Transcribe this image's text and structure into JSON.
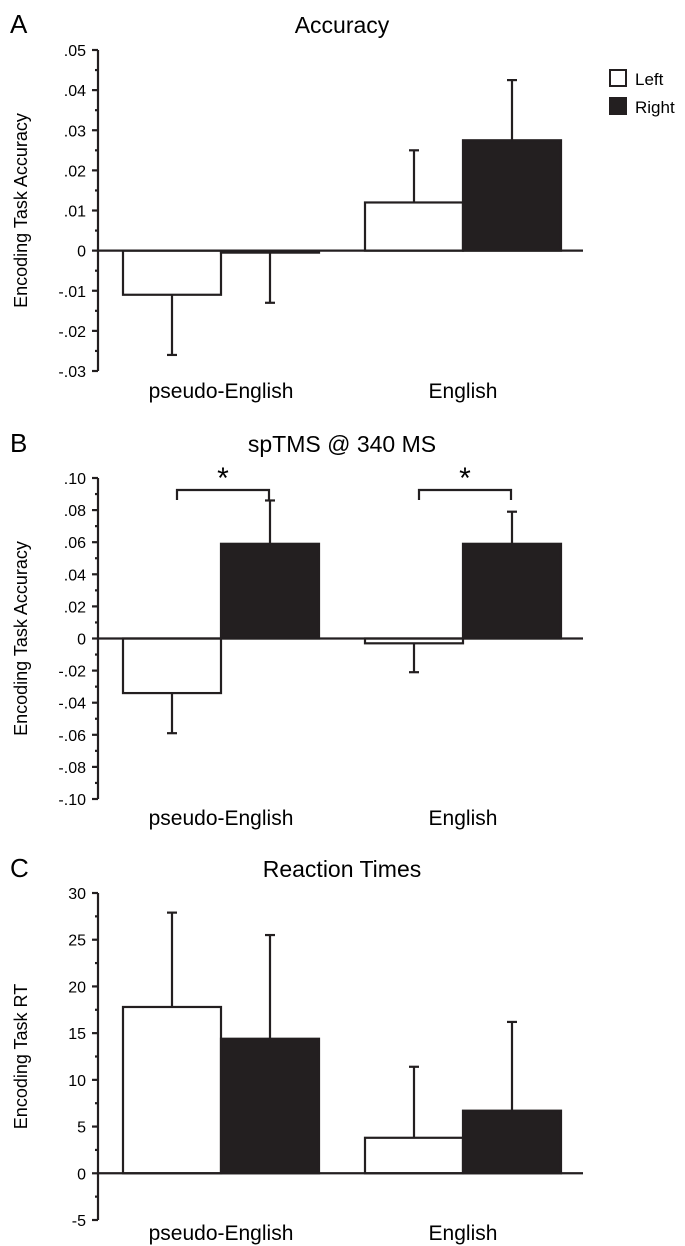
{
  "legend": [
    {
      "label": "Left",
      "color": "#ffffff"
    },
    {
      "label": "Right",
      "color": "#231f20"
    }
  ],
  "chart_data": [
    {
      "panel": "A",
      "type": "bar",
      "title": "Accuracy",
      "ylabel": "Encoding Task Accuracy",
      "categories": [
        "pseudo-English",
        "English"
      ],
      "ylim": [
        -0.03,
        0.05
      ],
      "yticks": [
        0.05,
        0.04,
        0.03,
        0.02,
        0.01,
        0,
        -0.01,
        -0.02,
        -0.03
      ],
      "ytick_labels": [
        ".05",
        ".04",
        ".03",
        ".02",
        ".01",
        "0",
        "-.01",
        "-.02",
        "-.03"
      ],
      "series": [
        {
          "name": "Left",
          "values": [
            -0.011,
            0.012
          ],
          "errors": [
            0.015,
            0.013
          ]
        },
        {
          "name": "Right",
          "values": [
            -0.0005,
            0.0275
          ],
          "errors": [
            0.0125,
            0.015
          ]
        }
      ],
      "significance": []
    },
    {
      "panel": "B",
      "type": "bar",
      "title": "spTMS @ 340 MS",
      "ylabel": "Encoding Task Accuracy",
      "categories": [
        "pseudo-English",
        "English"
      ],
      "ylim": [
        -0.1,
        0.1
      ],
      "yticks": [
        0.1,
        0.08,
        0.06,
        0.04,
        0.02,
        0,
        -0.02,
        -0.04,
        -0.06,
        -0.08,
        -0.1
      ],
      "ytick_labels": [
        ".10",
        ".08",
        ".06",
        ".04",
        ".02",
        "0",
        "-.02",
        "-.04",
        "-.06",
        "-.08",
        "-.10"
      ],
      "series": [
        {
          "name": "Left",
          "values": [
            -0.034,
            -0.003
          ],
          "errors": [
            0.025,
            0.018
          ]
        },
        {
          "name": "Right",
          "values": [
            0.059,
            0.059
          ],
          "errors": [
            0.027,
            0.02
          ]
        }
      ],
      "significance": [
        {
          "category": "pseudo-English",
          "label": "*"
        },
        {
          "category": "English",
          "label": "*"
        }
      ]
    },
    {
      "panel": "C",
      "type": "bar",
      "title": "Reaction Times",
      "ylabel": "Encoding Task RT",
      "categories": [
        "pseudo-English",
        "English"
      ],
      "ylim": [
        -5,
        30
      ],
      "yticks": [
        30,
        25,
        20,
        15,
        10,
        5,
        0,
        -5
      ],
      "ytick_labels": [
        "30",
        "25",
        "20",
        "15",
        "10",
        "5",
        "0",
        "-5"
      ],
      "series": [
        {
          "name": "Left",
          "values": [
            17.8,
            3.8
          ],
          "errors": [
            10.1,
            7.6
          ]
        },
        {
          "name": "Right",
          "values": [
            14.4,
            6.7
          ],
          "errors": [
            11.1,
            9.5
          ]
        }
      ],
      "significance": []
    }
  ]
}
